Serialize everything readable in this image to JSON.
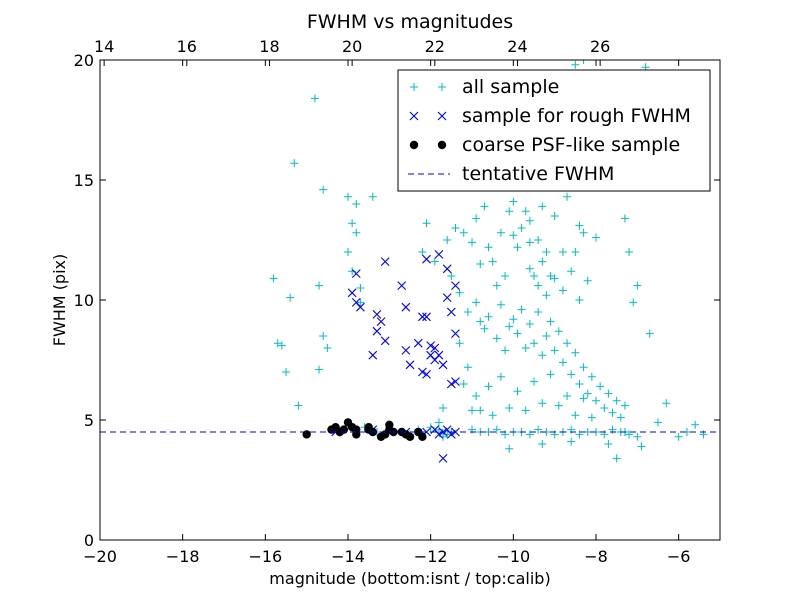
{
  "chart_data": {
    "type": "scatter",
    "title": "FWHM vs magnitudes",
    "xlabel": "magnitude (bottom:isnt / top:calib)",
    "ylabel": "FWHM (pix)",
    "xlim": [
      -20,
      -5
    ],
    "ylim": [
      0,
      20
    ],
    "x_ticks": [
      -20,
      -18,
      -16,
      -14,
      -12,
      -10,
      -8,
      -6
    ],
    "x_tick_labels": [
      "−20",
      "−18",
      "−16",
      "−14",
      "−12",
      "−10",
      "−8",
      "−6"
    ],
    "y_ticks": [
      0,
      5,
      10,
      15,
      20
    ],
    "y_tick_labels": [
      "0",
      "5",
      "10",
      "15",
      "20"
    ],
    "top_axis": {
      "offset_from_bottom": 33.9,
      "ticks": [
        14,
        16,
        18,
        20,
        22,
        24,
        26
      ],
      "tick_labels": [
        "14",
        "16",
        "18",
        "20",
        "22",
        "24",
        "26"
      ]
    },
    "grid": false,
    "legend_position": "top-right",
    "series": [
      {
        "name": "all sample",
        "marker": "plus",
        "color": "#00bfbf",
        "points": [
          [
            -15.8,
            10.9
          ],
          [
            -15.7,
            8.2
          ],
          [
            -15.6,
            8.1
          ],
          [
            -15.5,
            7.0
          ],
          [
            -15.4,
            10.1
          ],
          [
            -15.3,
            15.7
          ],
          [
            -15.2,
            5.6
          ],
          [
            -15.0,
            4.4
          ],
          [
            -14.8,
            18.4
          ],
          [
            -14.7,
            10.6
          ],
          [
            -14.7,
            7.1
          ],
          [
            -14.6,
            14.6
          ],
          [
            -14.6,
            8.5
          ],
          [
            -14.5,
            8.0
          ],
          [
            -14.3,
            4.7
          ],
          [
            -14.1,
            4.6
          ],
          [
            -14.0,
            14.3
          ],
          [
            -14.0,
            12.0
          ],
          [
            -13.9,
            11.2
          ],
          [
            -13.9,
            13.2
          ],
          [
            -13.8,
            12.8
          ],
          [
            -13.8,
            14.0
          ],
          [
            -13.7,
            10.5
          ],
          [
            -13.7,
            9.9
          ],
          [
            -13.6,
            4.7
          ],
          [
            -13.4,
            14.3
          ],
          [
            -13.3,
            4.5
          ],
          [
            -13.0,
            4.6
          ],
          [
            -12.7,
            4.5
          ],
          [
            -12.5,
            4.4
          ],
          [
            -12.2,
            12.0
          ],
          [
            -12.1,
            13.2
          ],
          [
            -12.0,
            4.7
          ],
          [
            -11.9,
            11.6
          ],
          [
            -11.8,
            4.6
          ],
          [
            -11.8,
            4.9
          ],
          [
            -11.7,
            5.5
          ],
          [
            -11.6,
            12.5
          ],
          [
            -11.5,
            11.0
          ],
          [
            -11.4,
            13.0
          ],
          [
            -11.2,
            12.8
          ],
          [
            -11.0,
            12.4
          ],
          [
            -10.9,
            13.4
          ],
          [
            -11.3,
            8.2
          ],
          [
            -11.2,
            6.5
          ],
          [
            -11.0,
            5.4
          ],
          [
            -10.8,
            11.5
          ],
          [
            -10.7,
            13.9
          ],
          [
            -10.6,
            12.2
          ],
          [
            -10.5,
            11.6
          ],
          [
            -10.4,
            10.6
          ],
          [
            -10.3,
            12.8
          ],
          [
            -10.2,
            11.0
          ],
          [
            -10.1,
            13.7
          ],
          [
            -10.0,
            14.1
          ],
          [
            -9.9,
            12.2
          ],
          [
            -9.8,
            13.0
          ],
          [
            -9.7,
            13.7
          ],
          [
            -9.6,
            12.4
          ],
          [
            -9.5,
            11.0
          ],
          [
            -9.4,
            12.5
          ],
          [
            -9.3,
            13.9
          ],
          [
            -9.2,
            12.0
          ],
          [
            -9.0,
            16.6
          ],
          [
            -9.0,
            13.5
          ],
          [
            -8.8,
            12.0
          ],
          [
            -8.7,
            14.3
          ],
          [
            -8.5,
            12.0
          ],
          [
            -8.3,
            12.8
          ],
          [
            -8.2,
            14.7
          ],
          [
            -8.0,
            12.6
          ],
          [
            -7.9,
            15.7
          ],
          [
            -7.7,
            15.5
          ],
          [
            -7.5,
            17.1
          ],
          [
            -7.3,
            13.4
          ],
          [
            -7.2,
            12.0
          ],
          [
            -7.0,
            10.6
          ],
          [
            -8.5,
            19.8
          ],
          [
            -8.3,
            20.0
          ],
          [
            -8.0,
            20.0
          ],
          [
            -6.8,
            19.7
          ],
          [
            -7.1,
            9.9
          ],
          [
            -6.7,
            8.6
          ],
          [
            -7.3,
            4.5
          ],
          [
            -7.0,
            4.3
          ],
          [
            -6.5,
            4.9
          ],
          [
            -6.3,
            5.7
          ],
          [
            -6.0,
            4.3
          ],
          [
            -5.8,
            4.5
          ],
          [
            -5.6,
            4.8
          ],
          [
            -5.4,
            4.4
          ],
          [
            -10.9,
            9.9
          ],
          [
            -10.8,
            9.1
          ],
          [
            -10.7,
            8.8
          ],
          [
            -10.6,
            9.3
          ],
          [
            -10.4,
            8.4
          ],
          [
            -10.3,
            9.8
          ],
          [
            -10.2,
            7.9
          ],
          [
            -10.1,
            8.9
          ],
          [
            -10.0,
            9.2
          ],
          [
            -9.9,
            8.6
          ],
          [
            -9.8,
            9.6
          ],
          [
            -9.7,
            8.0
          ],
          [
            -9.6,
            9.0
          ],
          [
            -9.5,
            8.2
          ],
          [
            -9.4,
            9.5
          ],
          [
            -9.3,
            7.7
          ],
          [
            -9.2,
            8.5
          ],
          [
            -9.1,
            9.1
          ],
          [
            -9.0,
            7.9
          ],
          [
            -8.9,
            8.7
          ],
          [
            -8.8,
            7.4
          ],
          [
            -8.7,
            8.2
          ],
          [
            -8.6,
            6.9
          ],
          [
            -8.5,
            7.8
          ],
          [
            -8.4,
            6.5
          ],
          [
            -8.3,
            7.2
          ],
          [
            -8.2,
            6.1
          ],
          [
            -8.1,
            6.8
          ],
          [
            -8.0,
            5.8
          ],
          [
            -7.9,
            6.4
          ],
          [
            -7.8,
            5.5
          ],
          [
            -7.7,
            6.1
          ],
          [
            -7.6,
            5.3
          ],
          [
            -7.5,
            5.8
          ],
          [
            -7.4,
            5.1
          ],
          [
            -7.3,
            5.6
          ],
          [
            -10.9,
            6.0
          ],
          [
            -10.8,
            5.4
          ],
          [
            -10.6,
            6.4
          ],
          [
            -10.5,
            5.2
          ],
          [
            -10.3,
            6.8
          ],
          [
            -10.1,
            5.5
          ],
          [
            -9.9,
            6.2
          ],
          [
            -9.7,
            5.4
          ],
          [
            -9.5,
            6.6
          ],
          [
            -9.3,
            5.7
          ],
          [
            -9.1,
            6.9
          ],
          [
            -8.9,
            5.6
          ],
          [
            -8.7,
            6.0
          ],
          [
            -8.5,
            5.2
          ],
          [
            -8.3,
            5.9
          ],
          [
            -8.1,
            5.1
          ],
          [
            -11.0,
            4.6
          ],
          [
            -10.8,
            4.5
          ],
          [
            -10.6,
            4.5
          ],
          [
            -10.4,
            4.6
          ],
          [
            -10.2,
            4.4
          ],
          [
            -10.0,
            4.5
          ],
          [
            -9.8,
            4.5
          ],
          [
            -9.6,
            4.4
          ],
          [
            -9.4,
            4.6
          ],
          [
            -9.2,
            4.5
          ],
          [
            -9.0,
            4.4
          ],
          [
            -8.8,
            4.5
          ],
          [
            -8.6,
            4.6
          ],
          [
            -8.4,
            4.4
          ],
          [
            -8.2,
            4.5
          ],
          [
            -8.0,
            4.5
          ],
          [
            -7.8,
            4.4
          ],
          [
            -7.6,
            4.6
          ],
          [
            -7.4,
            4.5
          ],
          [
            -7.2,
            4.4
          ],
          [
            -10.1,
            3.8
          ],
          [
            -9.3,
            4.0
          ],
          [
            -8.6,
            4.1
          ],
          [
            -7.7,
            4.0
          ],
          [
            -6.9,
            3.9
          ],
          [
            -7.5,
            3.4
          ],
          [
            -9.4,
            10.6
          ],
          [
            -9.2,
            10.2
          ],
          [
            -9.0,
            10.9
          ],
          [
            -8.8,
            10.4
          ],
          [
            -8.6,
            11.2
          ],
          [
            -8.4,
            10.0
          ],
          [
            -8.2,
            10.8
          ],
          [
            -9.6,
            11.3
          ],
          [
            -9.3,
            11.6
          ],
          [
            -9.1,
            11.0
          ],
          [
            -11.6,
            4.4
          ],
          [
            -11.5,
            4.5
          ],
          [
            -11.7,
            4.3
          ],
          [
            -12.3,
            4.6
          ],
          [
            -10.0,
            12.7
          ],
          [
            -9.6,
            13.3
          ],
          [
            -9.0,
            15.2
          ],
          [
            -8.4,
            13.1
          ],
          [
            -11.3,
            10.3
          ],
          [
            -11.1,
            9.5
          ],
          [
            -11.1,
            7.2
          ]
        ]
      },
      {
        "name": "sample for rough FWHM",
        "marker": "x",
        "color": "#0000ff",
        "points": [
          [
            -13.8,
            11.1
          ],
          [
            -13.1,
            11.6
          ],
          [
            -13.8,
            9.9
          ],
          [
            -13.7,
            9.7
          ],
          [
            -13.9,
            10.3
          ],
          [
            -12.7,
            10.6
          ],
          [
            -12.6,
            9.7
          ],
          [
            -13.3,
            9.4
          ],
          [
            -13.2,
            9.1
          ],
          [
            -13.3,
            8.7
          ],
          [
            -13.1,
            8.3
          ],
          [
            -12.2,
            9.3
          ],
          [
            -12.1,
            9.3
          ],
          [
            -11.9,
            8.0
          ],
          [
            -11.8,
            7.7
          ],
          [
            -12.0,
            7.7
          ],
          [
            -12.1,
            11.7
          ],
          [
            -11.8,
            11.9
          ],
          [
            -11.6,
            11.3
          ],
          [
            -11.4,
            10.6
          ],
          [
            -11.5,
            9.5
          ],
          [
            -11.6,
            10.1
          ],
          [
            -11.4,
            8.6
          ],
          [
            -12.0,
            8.1
          ],
          [
            -11.9,
            7.5
          ],
          [
            -12.2,
            7.0
          ],
          [
            -12.1,
            6.9
          ],
          [
            -12.5,
            7.3
          ],
          [
            -12.6,
            7.9
          ],
          [
            -13.4,
            7.7
          ],
          [
            -11.5,
            6.5
          ],
          [
            -11.4,
            6.6
          ],
          [
            -11.6,
            4.6
          ],
          [
            -11.5,
            4.4
          ],
          [
            -11.7,
            4.5
          ],
          [
            -11.8,
            4.4
          ],
          [
            -11.4,
            4.5
          ],
          [
            -11.9,
            4.6
          ],
          [
            -12.1,
            4.5
          ],
          [
            -12.6,
            4.5
          ],
          [
            -13.4,
            4.6
          ],
          [
            -14.3,
            4.5
          ],
          [
            -11.7,
            3.4
          ],
          [
            -12.3,
            8.2
          ],
          [
            -11.7,
            7.3
          ]
        ]
      },
      {
        "name": "coarse PSF-like sample",
        "marker": "dot",
        "color": "#000000",
        "points": [
          [
            -15.0,
            4.4
          ],
          [
            -14.4,
            4.6
          ],
          [
            -14.3,
            4.7
          ],
          [
            -14.2,
            4.5
          ],
          [
            -14.1,
            4.6
          ],
          [
            -14.0,
            4.9
          ],
          [
            -13.9,
            4.7
          ],
          [
            -13.8,
            4.4
          ],
          [
            -13.8,
            4.6
          ],
          [
            -13.5,
            4.6
          ],
          [
            -13.5,
            4.7
          ],
          [
            -13.2,
            4.3
          ],
          [
            -13.1,
            4.4
          ],
          [
            -13.0,
            4.6
          ],
          [
            -13.0,
            4.8
          ],
          [
            -12.9,
            4.5
          ],
          [
            -12.7,
            4.5
          ],
          [
            -12.6,
            4.4
          ],
          [
            -12.5,
            4.3
          ],
          [
            -12.3,
            4.5
          ],
          [
            -12.2,
            4.3
          ],
          [
            -13.4,
            4.5
          ]
        ]
      },
      {
        "name": "tentative FWHM",
        "marker": "dashed-line",
        "color": "#0000ff",
        "y": 4.5
      }
    ]
  }
}
